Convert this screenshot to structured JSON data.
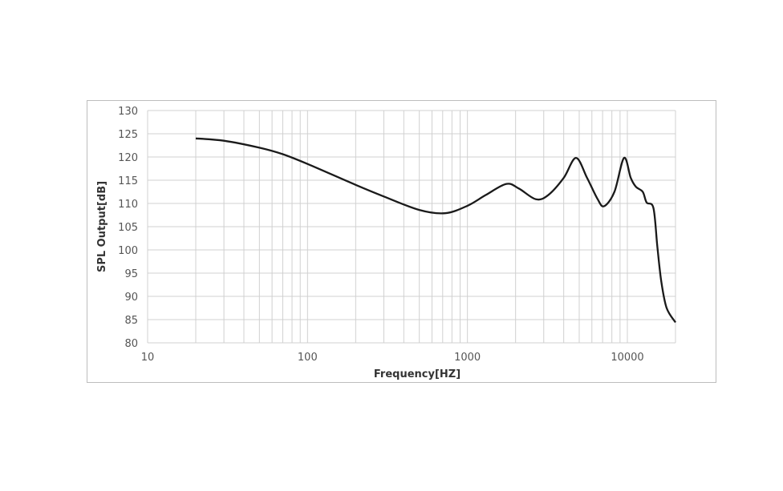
{
  "chart_data": {
    "type": "line",
    "title": "",
    "xlabel": "Frequency[HZ]",
    "ylabel": "SPL Output[dB]",
    "x_scale": "log",
    "xlim": [
      10,
      20000
    ],
    "ylim": [
      80,
      130
    ],
    "x_tick_labels": [
      "10",
      "100",
      "1000",
      "10000"
    ],
    "x_ticks": [
      10,
      100,
      1000,
      10000
    ],
    "y_ticks": [
      80,
      85,
      90,
      95,
      100,
      105,
      110,
      115,
      120,
      125,
      130
    ],
    "y_tick_labels": [
      "80",
      "85",
      "90",
      "95",
      "100",
      "105",
      "110",
      "115",
      "120",
      "125",
      "130"
    ],
    "grid": true,
    "line_color": "#1a1a1a",
    "grid_color": "#d0d0d0",
    "series": [
      {
        "x": [
          20,
          30,
          50,
          70,
          100,
          200,
          300,
          500,
          725,
          1000,
          1300,
          1750,
          2100,
          2680,
          3200,
          4000,
          4770,
          5600,
          6500,
          7150,
          8300,
          9530,
          10500,
          11300,
          12480,
          13200,
          14560,
          15400,
          16300,
          17600,
          20000
        ],
        "y": [
          124,
          123.5,
          122,
          120.6,
          118.5,
          114,
          111.5,
          108.6,
          107.9,
          109.5,
          111.8,
          114.2,
          113.2,
          110.9,
          111.8,
          115.5,
          119.8,
          115.5,
          111,
          109.4,
          112.5,
          119.8,
          115.5,
          113.6,
          112.5,
          110.2,
          109,
          100.7,
          93.2,
          87.5,
          84.4
        ]
      }
    ]
  }
}
